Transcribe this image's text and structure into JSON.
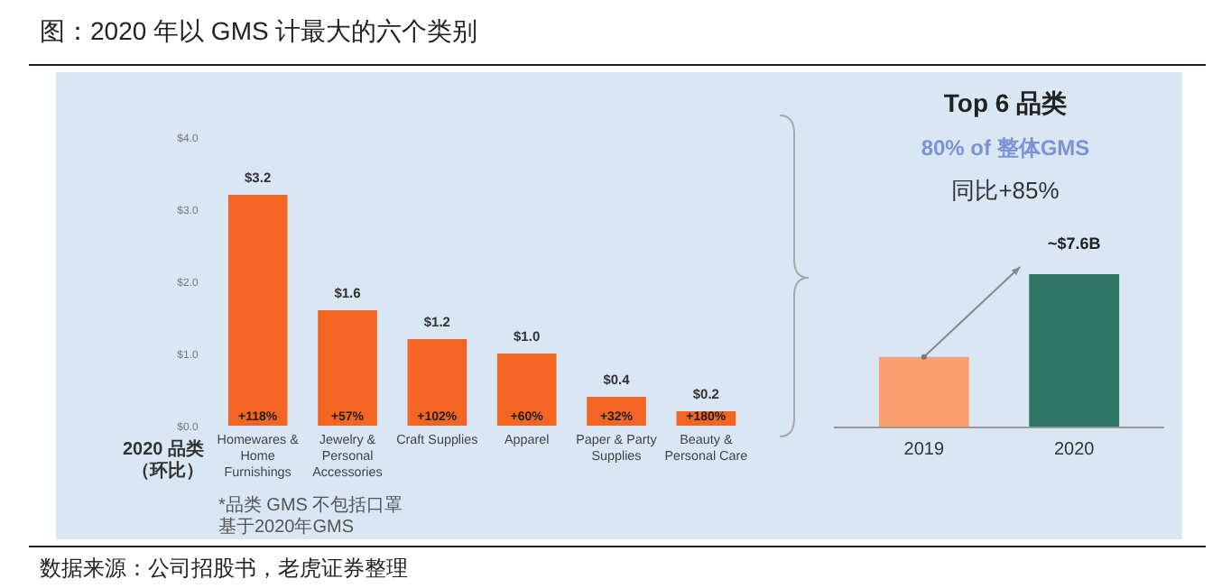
{
  "chart_data": [
    {
      "type": "bar",
      "title": "图：2020 年以 GMS 计最大的六个类别",
      "xlabel": "2020 品类（环比）",
      "categories": [
        "Homewares & Home Furnishings",
        "Jewelry & Personal Accessories",
        "Craft Supplies",
        "Apparel",
        "Paper & Party Supplies",
        "Beauty & Personal Care"
      ],
      "values": [
        3.2,
        1.6,
        1.2,
        1.0,
        0.4,
        0.2
      ],
      "color": "#f26522",
      "value_labels": [
        "$3.2",
        "$1.6",
        "$1.2",
        "$1.0",
        "$0.4",
        "$0.2"
      ],
      "ylim": [
        0,
        4
      ],
      "yticks": [
        {
          "value": 0,
          "label": "$0.0"
        },
        {
          "value": 1,
          "label": "$1.0"
        },
        {
          "value": 2,
          "label": "$2.0"
        },
        {
          "value": 3,
          "label": "$3.0"
        },
        {
          "value": 4,
          "label": "$4.0"
        }
      ],
      "annotations": [
        {
          "text": "+118%",
          "x": "Homewares & Home Furnishings"
        },
        {
          "text": "+57%",
          "x": "Jewelry & Personal Accessories"
        },
        {
          "text": "+102%",
          "x": "Craft Supplies"
        },
        {
          "text": "+60%",
          "x": "Apparel"
        },
        {
          "text": "+32%",
          "x": "Paper & Party Supplies"
        },
        {
          "text": "+180%",
          "x": "Beauty & Personal Care"
        },
        "*品类 GMS 不包括口罩",
        "基于2020年GMS",
        "数据来源：公司招股书，老虎证券整理"
      ]
    },
    {
      "type": "bar",
      "title": "Top 6 品类",
      "subtitle": "80% of 整体GMS",
      "categories": [
        "2019",
        "2020"
      ],
      "values": [
        3.5,
        7.6
      ],
      "colors": [
        "#f9a070",
        "#2e7566"
      ],
      "value_labels": [
        null,
        "~$7.6B"
      ],
      "annotations": [
        "同比+85%"
      ]
    }
  ]
}
